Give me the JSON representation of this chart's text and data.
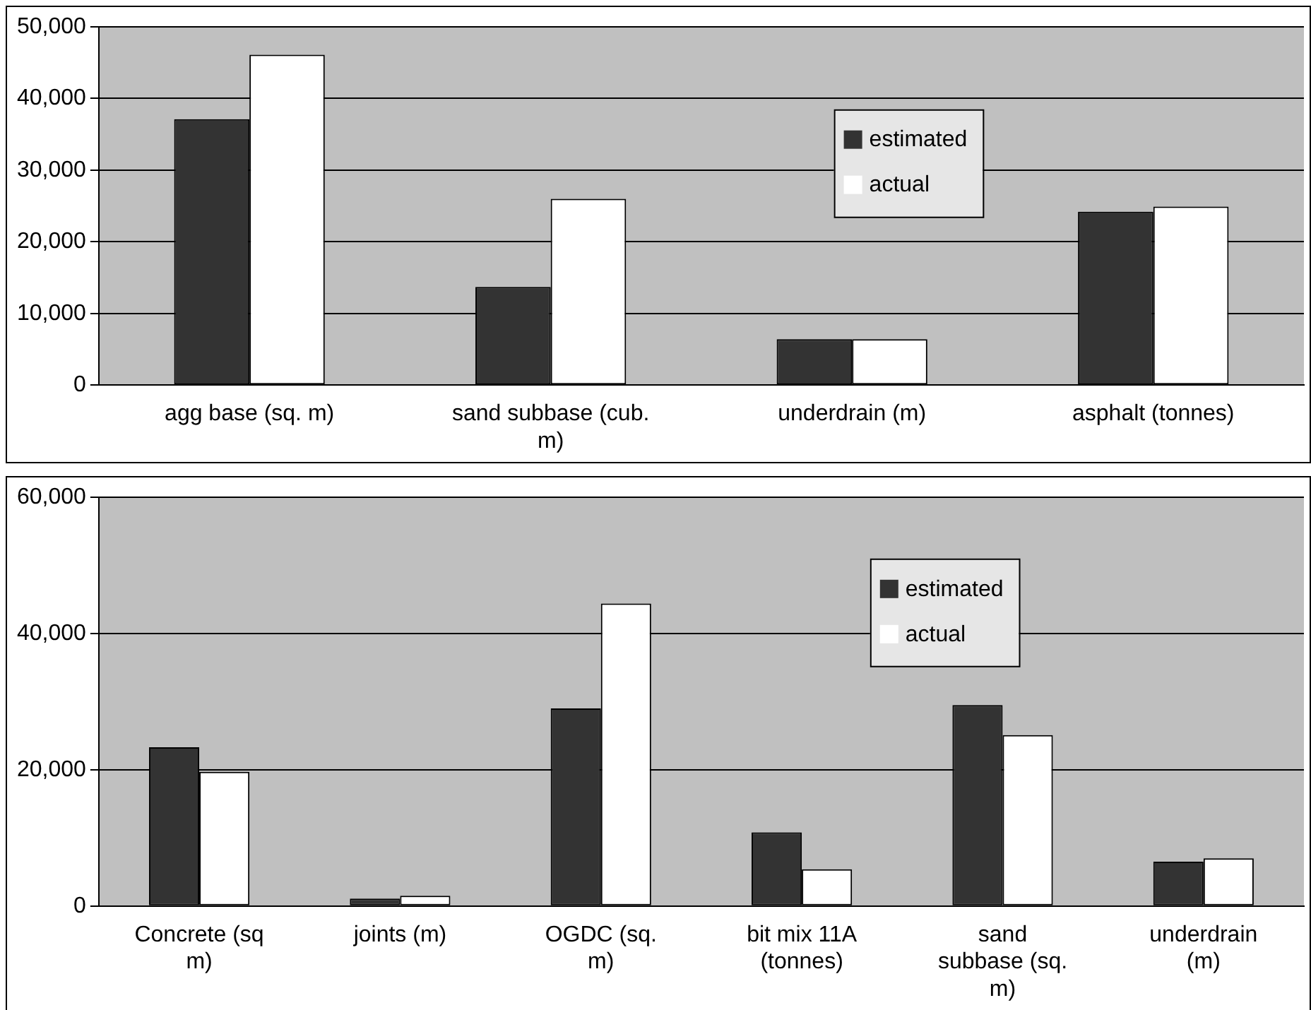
{
  "chart_data": [
    {
      "type": "bar",
      "categories": [
        "agg base (sq. m)",
        "sand subbase (cub. m)",
        "underdrain (m)",
        "asphalt (tonnes)"
      ],
      "series": [
        {
          "name": "estimated",
          "color": "#333333",
          "values": [
            37100,
            13700,
            6400,
            24200
          ]
        },
        {
          "name": "actual",
          "color": "#ffffff",
          "values": [
            46100,
            26000,
            6400,
            24900
          ]
        }
      ],
      "ylim": [
        0,
        50000
      ],
      "yticks": [
        0,
        {
          "value": 10000,
          "label": "10,000"
        },
        {
          "value": 20000,
          "label": "20,000"
        },
        {
          "value": 30000,
          "label": "30,000"
        },
        {
          "value": 40000,
          "label": "40,000"
        },
        {
          "value": 50000,
          "label": "50,000"
        }
      ],
      "grid": "y",
      "legend": "top right"
    },
    {
      "type": "bar",
      "categories": [
        "Concrete (sq m)",
        "joints (m)",
        "OGDC (sq. m)",
        "bit mix 11A (tonnes)",
        "sand subbase (sq. m)",
        "underdrain (m)"
      ],
      "series": [
        {
          "name": "estimated",
          "color": "#333333",
          "values": [
            23300,
            1100,
            29000,
            10800,
            29500,
            6500
          ]
        },
        {
          "name": "actual",
          "color": "#ffffff",
          "values": [
            19700,
            1500,
            44400,
            5400,
            25100,
            7000
          ]
        }
      ],
      "ylim": [
        0,
        60000
      ],
      "yticks": [
        0,
        {
          "value": 20000,
          "label": "20,000"
        },
        {
          "value": 40000,
          "label": "40,000"
        },
        {
          "value": 60000,
          "label": "60,000"
        }
      ],
      "grid": "y",
      "legend": "top right"
    }
  ]
}
